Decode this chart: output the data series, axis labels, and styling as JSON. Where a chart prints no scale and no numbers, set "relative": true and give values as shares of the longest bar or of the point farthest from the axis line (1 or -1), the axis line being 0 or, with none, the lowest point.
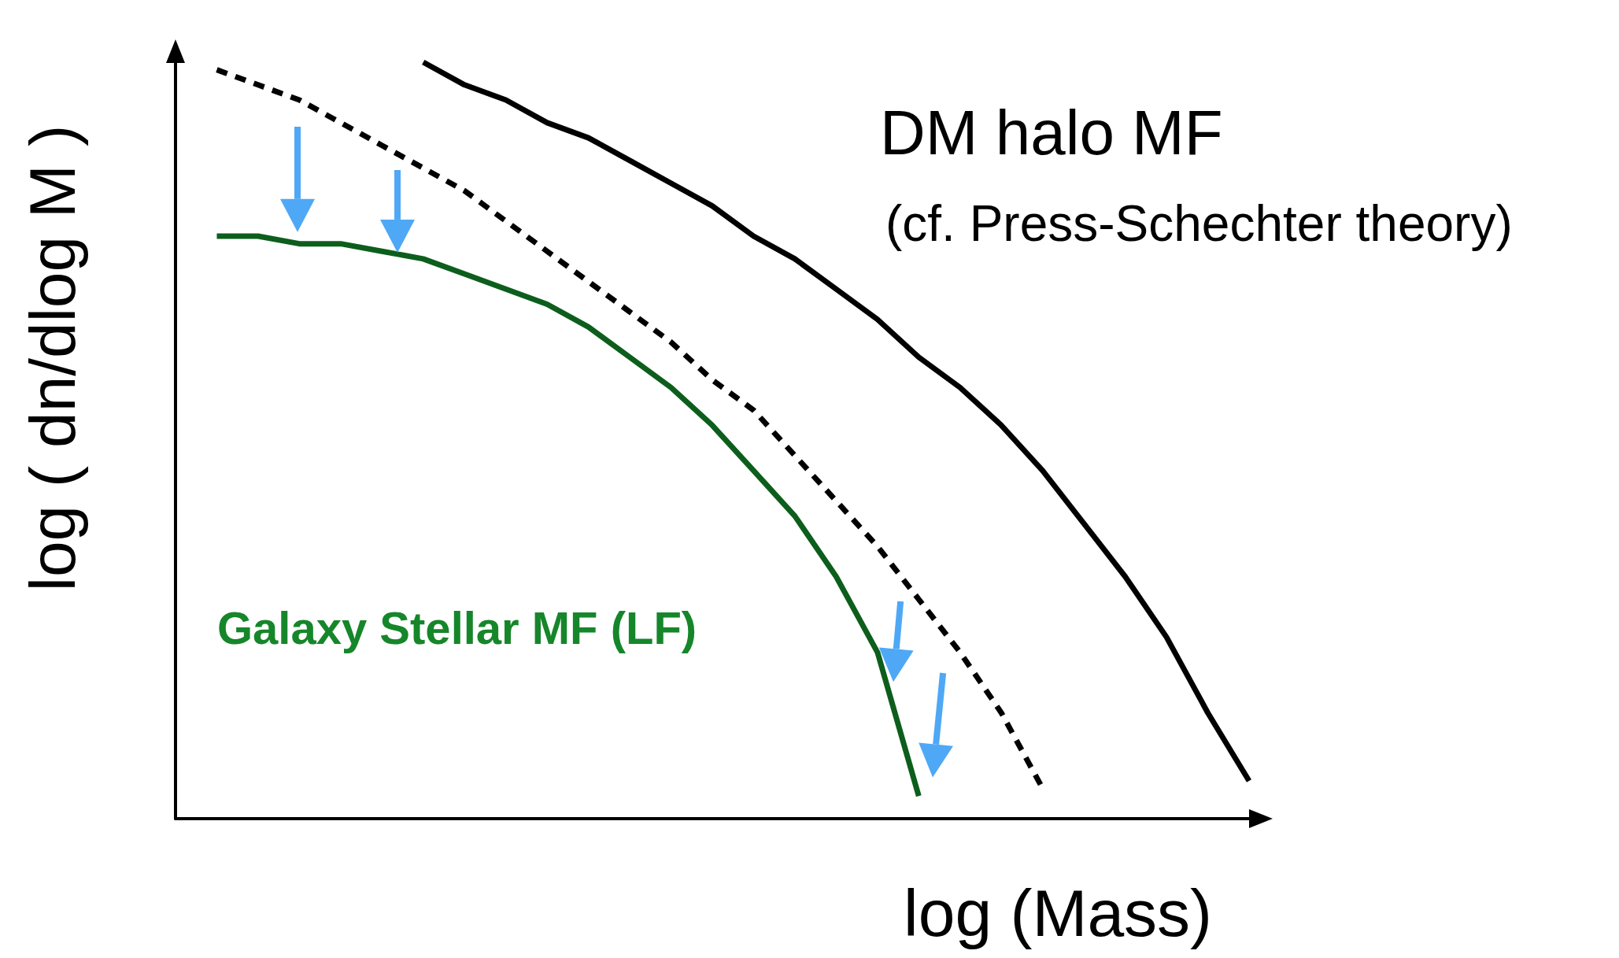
{
  "chart_data": {
    "type": "line",
    "relative": true,
    "xlabel": "log (Mass)",
    "ylabel": "log ( dn/dlog M )",
    "marker": "none",
    "line_style": "solid",
    "categories": [
      null,
      null,
      null,
      null,
      null,
      null,
      null,
      null,
      null,
      null,
      null,
      null,
      null,
      null,
      null,
      null,
      null,
      null,
      null,
      null,
      null,
      null,
      null,
      null,
      null,
      null,
      null
    ],
    "series": [
      {
        "name": "DM halo MF",
        "color": "#000000",
        "values": [
          null,
          null,
          null,
          null,
          null,
          null,
          1.0,
          0.97,
          0.95,
          0.92,
          0.9,
          0.87,
          0.84,
          0.81,
          0.77,
          0.74,
          0.7,
          0.66,
          0.61,
          0.57,
          0.52,
          0.46,
          0.39,
          0.32,
          0.24,
          0.14,
          0.05
        ]
      },
      {
        "color": "#000000",
        "line_style": "dashed",
        "values": [
          null,
          0.99,
          0.97,
          0.95,
          0.92,
          0.89,
          0.86,
          0.83,
          0.79,
          0.75,
          0.71,
          0.67,
          0.63,
          0.58,
          0.54,
          0.48,
          0.42,
          0.36,
          0.29,
          0.22,
          0.14,
          0.04,
          null,
          null,
          null,
          null,
          null
        ]
      },
      {
        "name": "Galaxy Stellar MF (LF)",
        "color": "#0d5e1c",
        "values": [
          null,
          0.77,
          0.77,
          0.76,
          0.76,
          0.75,
          0.74,
          0.72,
          0.7,
          0.68,
          0.65,
          0.61,
          0.57,
          0.52,
          0.46,
          0.4,
          0.32,
          0.22,
          0.03,
          null,
          null,
          null,
          null,
          null,
          null,
          null,
          null
        ]
      }
    ],
    "annotations": [
      "(cf. Press-Schechter theory)"
    ]
  }
}
